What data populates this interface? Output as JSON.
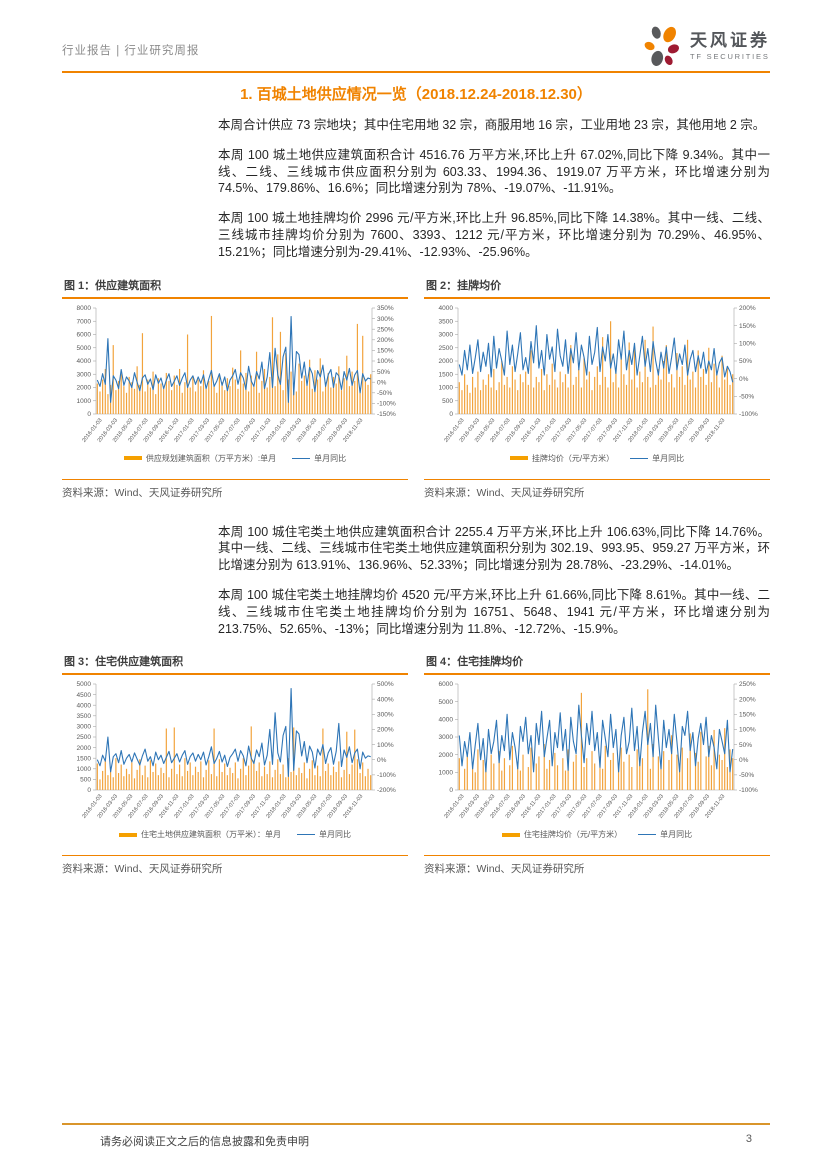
{
  "header": {
    "breadcrumb": "行业报告 | 行业研究周报",
    "brand": {
      "name_cn": "天风证券",
      "name_en": "TF SECURITIES"
    }
  },
  "section_title": "1. 百城土地供应情况一览（2018.12.24-2018.12.30）",
  "paragraphs": {
    "p1": "本周合计供应 73 宗地块；其中住宅用地 32 宗，商服用地 16 宗，工业用地 23 宗，其他用地 2 宗。",
    "p2": "本周 100 城土地供应建筑面积合计 4516.76 万平方米,环比上升 67.02%,同比下降 9.34%。其中一线、二线、三线城市供应面积分别为 603.33、1994.36、1919.07 万平方米，环比增速分别为 74.5%、179.86%、16.6%；同比增速分别为 78%、-19.07%、-11.91%。",
    "p3": "本周 100 城土地挂牌均价 2996 元/平方米,环比上升 96.85%,同比下降 14.38%。其中一线、二线、三线城市挂牌均价分别为 7600、3393、1212 元/平方米，环比增速分别为 70.29%、46.95%、15.21%；同比增速分别为-29.41%、-12.93%、-25.96%。",
    "p4": "本周 100 城住宅类土地供应建筑面积合计 2255.4 万平方米,环比上升 106.63%,同比下降 14.76%。其中一线、二线、三线城市住宅类土地供应建筑面积分别为 302.19、993.95、959.27 万平方米，环比增速分别为 613.91%、136.96%、52.33%；同比增速分别为 28.78%、-23.29%、-14.01%。",
    "p5": "本周 100 城住宅类土地挂牌均价 4520 元/平方米,环比上升 61.66%,同比下降 8.61%。其中一线、二线、三线城市住宅类土地挂牌均价分别为 16751、5648、1941 元/平方米，环比增速分别为 213.75%、52.65%、-13%；同比增速分别为 11.8%、-12.72%、-15.9%。"
  },
  "colors": {
    "accent_orange": "#F08300",
    "bar_orange": "#F5A000",
    "line_blue": "#2E75B6"
  },
  "footer": {
    "disclaimer": "请务必阅读正文之后的信息披露和免责申明",
    "page_number": "3"
  },
  "chart_data": [
    {
      "heading": "图 1：供应建筑面积",
      "type": "bar+line (weekly series, values estimated from plot)",
      "left_axis": {
        "min": 0,
        "max": 8000,
        "step": 1000
      },
      "right_axis": {
        "min": -150,
        "max": 350,
        "step": 50,
        "suffix": "%"
      },
      "x_tick_labels": [
        "2016-01-03",
        "2016-03-03",
        "2016-05-03",
        "2016-07-03",
        "2016-09-03",
        "2016-11-03",
        "2017-01-03",
        "2017-03-03",
        "2017-05-03",
        "2017-07-03",
        "2017-09-03",
        "2017-11-03",
        "2018-01-03",
        "2018-03-03",
        "2018-05-03",
        "2018-07-03",
        "2018-09-03",
        "2018-11-03"
      ],
      "bar_series": {
        "name": "供应规划建筑面积（万平方米）:单月",
        "color": "#F2A33C",
        "values": [
          2300,
          1700,
          2600,
          3400,
          1500,
          2200,
          5200,
          1800,
          2500,
          3000,
          2100,
          1600,
          2800,
          2400,
          1900,
          3600,
          2200,
          6100,
          1700,
          2600,
          2000,
          3200,
          1500,
          2700,
          2300,
          1900,
          3100,
          2500,
          1800,
          2900,
          2200,
          3400,
          1600,
          2400,
          6000,
          2000,
          2800,
          1700,
          2600,
          2100,
          3300,
          1900,
          2500,
          7400,
          2200,
          1600,
          3000,
          2400,
          1800,
          2700,
          2100,
          3500,
          2600,
          1900,
          4800,
          2300,
          3100,
          1700,
          2900,
          2200,
          4700,
          1600,
          2500,
          3400,
          2000,
          2800,
          7300,
          2100,
          4500,
          6200,
          1800,
          4600,
          2600,
          3200,
          2300,
          1700,
          3800,
          2500,
          2900,
          2200,
          4100,
          1900,
          3300,
          2600,
          4200,
          1700,
          2400,
          3100,
          2000,
          2800,
          2300,
          3600,
          1800,
          2700,
          4400,
          2100,
          3200,
          2500,
          6800,
          1900,
          5900,
          2600,
          2200,
          3000
        ]
      },
      "line_series": {
        "name": "单月同比",
        "color": "#2E75B6",
        "values": [
          10,
          -20,
          40,
          -10,
          205,
          -95,
          30,
          10,
          -30,
          60,
          -15,
          25,
          5,
          -25,
          45,
          0,
          -40,
          20,
          35,
          -10,
          15,
          -35,
          35,
          -5,
          20,
          -30,
          10,
          40,
          -20,
          5,
          30,
          -15,
          20,
          45,
          -25,
          10,
          30,
          -10,
          25,
          -5,
          35,
          -30,
          15,
          55,
          -20,
          5,
          40,
          -15,
          25,
          -40,
          10,
          30,
          60,
          -10,
          45,
          20,
          -35,
          75,
          5,
          -20,
          50,
          15,
          95,
          -30,
          25,
          140,
          -25,
          160,
          35,
          -10,
          120,
          165,
          -95,
          310,
          -60,
          145,
          130,
          20,
          95,
          -15,
          70,
          40,
          -45,
          55,
          25,
          80,
          -20,
          35,
          60,
          -25,
          45,
          30,
          -35,
          50,
          10,
          65,
          -15,
          35,
          55,
          -50,
          40,
          5,
          20,
          15
        ]
      },
      "source": "资料来源：Wind、天风证券研究所"
    },
    {
      "heading": "图 2：挂牌均价",
      "type": "bar+line (weekly series, values estimated from plot)",
      "left_axis": {
        "min": 0,
        "max": 4000,
        "step": 500
      },
      "right_axis": {
        "min": -100,
        "max": 200,
        "step": 50,
        "suffix": "%"
      },
      "x_tick_labels": [
        "2016-01-03",
        "2016-03-03",
        "2016-05-03",
        "2016-07-03",
        "2016-09-03",
        "2016-11-03",
        "2017-01-03",
        "2017-03-03",
        "2017-05-03",
        "2017-07-03",
        "2017-09-03",
        "2017-11-03",
        "2018-01-03",
        "2018-03-03",
        "2018-05-03",
        "2018-07-03",
        "2018-09-03",
        "2018-11-03"
      ],
      "bar_series": {
        "name": "挂牌均价（元/平方米）",
        "color": "#F2A33C",
        "values": [
          1200,
          900,
          1500,
          1100,
          800,
          1400,
          1000,
          1600,
          900,
          1300,
          1100,
          1500,
          1000,
          1700,
          900,
          1200,
          2000,
          1100,
          1400,
          1000,
          1800,
          1300,
          900,
          1500,
          1200,
          1600,
          1100,
          2400,
          1000,
          1400,
          1200,
          1700,
          900,
          1500,
          1100,
          1900,
          1300,
          1000,
          1600,
          1200,
          1500,
          1000,
          2600,
          1100,
          1400,
          1700,
          1000,
          2100,
          1300,
          1600,
          900,
          1400,
          1800,
          1100,
          2900,
          1400,
          1000,
          3500,
          1200,
          1700,
          1000,
          2200,
          1500,
          1100,
          2700,
          1300,
          2500,
          1000,
          1600,
          1200,
          2800,
          1400,
          1000,
          3300,
          1100,
          1700,
          1300,
          2000,
          2600,
          1200,
          1500,
          1000,
          2300,
          1400,
          1800,
          1100,
          2800,
          1300,
          1600,
          1000,
          2400,
          1400,
          1700,
          1100,
          2500,
          1200,
          1900,
          1500,
          1000,
          2200,
          1300,
          1800,
          1100,
          1500
        ]
      },
      "line_series": {
        "name": "单月同比",
        "color": "#2E75B6",
        "values": [
          40,
          10,
          80,
          25,
          95,
          15,
          60,
          110,
          20,
          75,
          35,
          100,
          5,
          120,
          30,
          85,
          50,
          10,
          135,
          40,
          95,
          20,
          70,
          130,
          25,
          60,
          15,
          105,
          45,
          150,
          30,
          80,
          10,
          125,
          55,
          90,
          20,
          140,
          65,
          35,
          110,
          15,
          85,
          45,
          130,
          25,
          95,
          60,
          10,
          120,
          40,
          75,
          145,
          20,
          90,
          50,
          125,
          30,
          70,
          15,
          110,
          55,
          135,
          25,
          80,
          40,
          100,
          10,
          65,
          120,
          35,
          85,
          20,
          105,
          50,
          10,
          75,
          30,
          90,
          15,
          60,
          115,
          25,
          70,
          40,
          95,
          10,
          55,
          80,
          20,
          65,
          30,
          75,
          15,
          50,
          25,
          85,
          10,
          45,
          60,
          5,
          35,
          20,
          -10
        ]
      },
      "source": "资料来源：Wind、天风证券研究所"
    },
    {
      "heading": "图 3：住宅供应建筑面积",
      "type": "bar+line (weekly series, values estimated from plot)",
      "left_axis": {
        "min": 0,
        "max": 5000,
        "step": 500
      },
      "right_axis": {
        "min": -200,
        "max": 500,
        "step": 100,
        "suffix": "%"
      },
      "x_tick_labels": [
        "2016-01-03",
        "2016-03-03",
        "2016-05-03",
        "2016-07-03",
        "2016-09-03",
        "2016-11-03",
        "2017-01-03",
        "2017-03-03",
        "2017-05-03",
        "2017-07-03",
        "2017-09-03",
        "2017-11-03",
        "2018-01-03",
        "2018-03-03",
        "2018-05-03",
        "2018-07-03",
        "2018-09-03",
        "2018-11-03"
      ],
      "bar_series": {
        "name": "住宅土地供应建筑面积（万平米）：单月",
        "color": "#F2A33C",
        "values": [
          1250,
          500,
          900,
          1400,
          700,
          1100,
          600,
          1500,
          800,
          1200,
          650,
          1000,
          750,
          1300,
          550,
          950,
          1450,
          700,
          1150,
          600,
          1400,
          850,
          1250,
          700,
          1050,
          800,
          2900,
          600,
          1000,
          2950,
          750,
          1200,
          650,
          1500,
          900,
          1300,
          700,
          1100,
          850,
          1350,
          600,
          950,
          1400,
          750,
          2900,
          650,
          1450,
          850,
          1250,
          700,
          1050,
          800,
          1300,
          550,
          1000,
          1500,
          700,
          1150,
          3000,
          1400,
          900,
          1300,
          650,
          1100,
          750,
          1350,
          600,
          950,
          1450,
          750,
          1200,
          600,
          1500,
          850,
          2950,
          700,
          1050,
          800,
          1300,
          550,
          1000,
          1400,
          700,
          1150,
          650,
          2900,
          900,
          1250,
          700,
          1100,
          850,
          1350,
          600,
          950,
          2750,
          750,
          1200,
          2850,
          1450,
          800,
          1300,
          650,
          1000,
          700
        ]
      },
      "line_series": {
        "name": "单月同比",
        "color": "#2E75B6",
        "values": [
          0,
          -40,
          30,
          -10,
          150,
          -80,
          20,
          40,
          -20,
          60,
          -30,
          10,
          35,
          -15,
          45,
          5,
          -35,
          25,
          70,
          -10,
          20,
          -40,
          50,
          0,
          30,
          -25,
          15,
          55,
          -20,
          10,
          40,
          -15,
          30,
          60,
          -30,
          20,
          45,
          -10,
          35,
          0,
          50,
          -35,
          20,
          85,
          -25,
          10,
          55,
          -15,
          30,
          -45,
          15,
          40,
          70,
          -10,
          60,
          25,
          -40,
          90,
          10,
          -25,
          65,
          20,
          110,
          -35,
          30,
          200,
          -30,
          310,
          45,
          -15,
          160,
          220,
          -110,
          470,
          -70,
          190,
          170,
          25,
          120,
          -20,
          90,
          50,
          -55,
          70,
          30,
          100,
          -25,
          45,
          80,
          -30,
          55,
          240,
          -45,
          65,
          15,
          85,
          -20,
          45,
          70,
          -60,
          50,
          10,
          25,
          20
        ]
      },
      "source": "资料来源：Wind、天风证券研究所"
    },
    {
      "heading": "图 4：住宅挂牌均价",
      "type": "bar+line (weekly series, values estimated from plot; 0 = no bar)",
      "left_axis": {
        "min": 0,
        "max": 6000,
        "step": 1000
      },
      "right_axis": {
        "min": -100,
        "max": 250,
        "step": 50,
        "suffix": "%"
      },
      "x_tick_labels": [
        "2016-01-03",
        "2016-03-03",
        "2016-05-03",
        "2016-07-03",
        "2016-09-03",
        "2016-11-03",
        "2017-01-03",
        "2017-03-03",
        "2017-05-03",
        "2017-07-03",
        "2017-09-03",
        "2017-11-03",
        "2018-01-03",
        "2018-03-03",
        "2018-05-03",
        "2018-07-03",
        "2018-09-03",
        "2018-11-03"
      ],
      "bar_series": {
        "name": "住宅挂牌均价（元/平方米）",
        "color": "#F2A33C",
        "values": [
          1800,
          0,
          1200,
          2100,
          0,
          1500,
          1000,
          2300,
          0,
          1700,
          1200,
          0,
          2000,
          1500,
          0,
          2200,
          1100,
          1800,
          0,
          1400,
          2500,
          0,
          1600,
          1100,
          2000,
          0,
          1300,
          2400,
          0,
          1500,
          1900,
          0,
          2600,
          1200,
          1700,
          0,
          2100,
          1400,
          0,
          1800,
          1100,
          2300,
          0,
          1600,
          2000,
          0,
          5500,
          1300,
          1800,
          0,
          2200,
          1500,
          0,
          1900,
          1200,
          2500,
          0,
          1700,
          2100,
          0,
          1400,
          2400,
          1600,
          0,
          2000,
          1300,
          0,
          2300,
          1500,
          1800,
          0,
          5700,
          1200,
          2600,
          0,
          1900,
          1400,
          2200,
          0,
          1700,
          3100,
          0,
          2000,
          1500,
          2400,
          0,
          1800,
          3200,
          0,
          2100,
          1600,
          3300,
          0,
          1900,
          2500,
          1400,
          3400,
          0,
          2000,
          1700,
          3500,
          1300,
          2300,
          1800
        ]
      },
      "line_series": {
        "name": "单月同比",
        "color": "#2E75B6",
        "values": [
          80,
          -20,
          60,
          10,
          90,
          -30,
          50,
          120,
          0,
          70,
          -40,
          100,
          20,
          60,
          130,
          -10,
          80,
          30,
          150,
          0,
          90,
          40,
          -30,
          110,
          60,
          140,
          20,
          80,
          -40,
          120,
          50,
          160,
          10,
          70,
          130,
          -20,
          90,
          40,
          155,
          30,
          100,
          -35,
          140,
          60,
          20,
          180,
          80,
          -10,
          120,
          50,
          160,
          30,
          90,
          -25,
          130,
          70,
          10,
          150,
          40,
          100,
          -40,
          80,
          140,
          20,
          60,
          170,
          30,
          110,
          -20,
          90,
          160,
          50,
          120,
          10,
          180,
          70,
          -30,
          130,
          40,
          100,
          20,
          150,
          60,
          -40,
          110,
          80,
          160,
          30,
          90,
          -20,
          70,
          120,
          50,
          140,
          10,
          80,
          40,
          -30,
          100,
          60,
          20,
          130,
          -40,
          35
        ]
      },
      "source": "资料来源：Wind、天风证券研究所"
    }
  ]
}
